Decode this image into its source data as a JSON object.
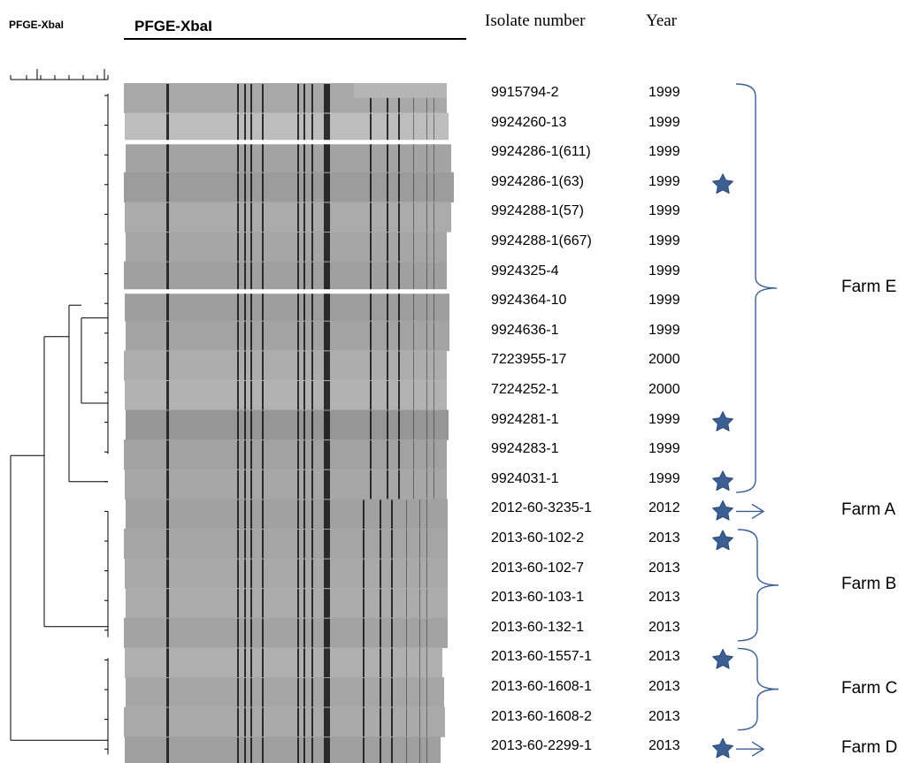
{
  "header": {
    "small_title": "PFGE-XbaI",
    "main_title": "PFGE-XbaI",
    "col_isolate": "Isolate number",
    "col_year": "Year"
  },
  "isolates": [
    {
      "id": "9915794-2",
      "year": "1999",
      "star": false
    },
    {
      "id": "9924260-13",
      "year": "1999",
      "star": false
    },
    {
      "id": "9924286-1(611)",
      "year": "1999",
      "star": false
    },
    {
      "id": "9924286-1(63)",
      "year": "1999",
      "star": true
    },
    {
      "id": "9924288-1(57)",
      "year": "1999",
      "star": false
    },
    {
      "id": "9924288-1(667)",
      "year": "1999",
      "star": false
    },
    {
      "id": "9924325-4",
      "year": "1999",
      "star": false
    },
    {
      "id": "9924364-10",
      "year": "1999",
      "star": false
    },
    {
      "id": "9924636-1",
      "year": "1999",
      "star": false
    },
    {
      "id": "7223955-17",
      "year": "2000",
      "star": false
    },
    {
      "id": "7224252-1",
      "year": "2000",
      "star": false
    },
    {
      "id": "9924281-1",
      "year": "1999",
      "star": true
    },
    {
      "id": "9924283-1",
      "year": "1999",
      "star": false
    },
    {
      "id": "9924031-1",
      "year": "1999",
      "star": true
    },
    {
      "id": "2012-60-3235-1",
      "year": "2012",
      "star": true
    },
    {
      "id": "2013-60-102-2",
      "year": "2013",
      "star": true
    },
    {
      "id": "2013-60-102-7",
      "year": "2013",
      "star": false
    },
    {
      "id": "2013-60-103-1",
      "year": "2013",
      "star": false
    },
    {
      "id": "2013-60-132-1",
      "year": "2013",
      "star": false
    },
    {
      "id": "2013-60-1557-1",
      "year": "2013",
      "star": true
    },
    {
      "id": "2013-60-1608-1",
      "year": "2013",
      "star": false
    },
    {
      "id": "2013-60-1608-2",
      "year": "2013",
      "star": false
    },
    {
      "id": "2013-60-2299-1",
      "year": "2013",
      "star": true
    }
  ],
  "farms": [
    {
      "label": "Farm E",
      "first": 0,
      "last": 13,
      "connector": "brace"
    },
    {
      "label": "Farm A",
      "first": 14,
      "last": 14,
      "connector": "arrow"
    },
    {
      "label": "Farm B",
      "first": 15,
      "last": 18,
      "connector": "brace"
    },
    {
      "label": "Farm C",
      "first": 19,
      "last": 21,
      "connector": "brace"
    },
    {
      "label": "Farm D",
      "first": 22,
      "last": 22,
      "connector": "arrow"
    }
  ],
  "colors": {
    "accent": "#3b5f93",
    "gel_background": "#a9a9a9",
    "band": "#141414"
  },
  "icons": {
    "marker": "star-icon",
    "single_pointer": "arrow-right-icon"
  }
}
